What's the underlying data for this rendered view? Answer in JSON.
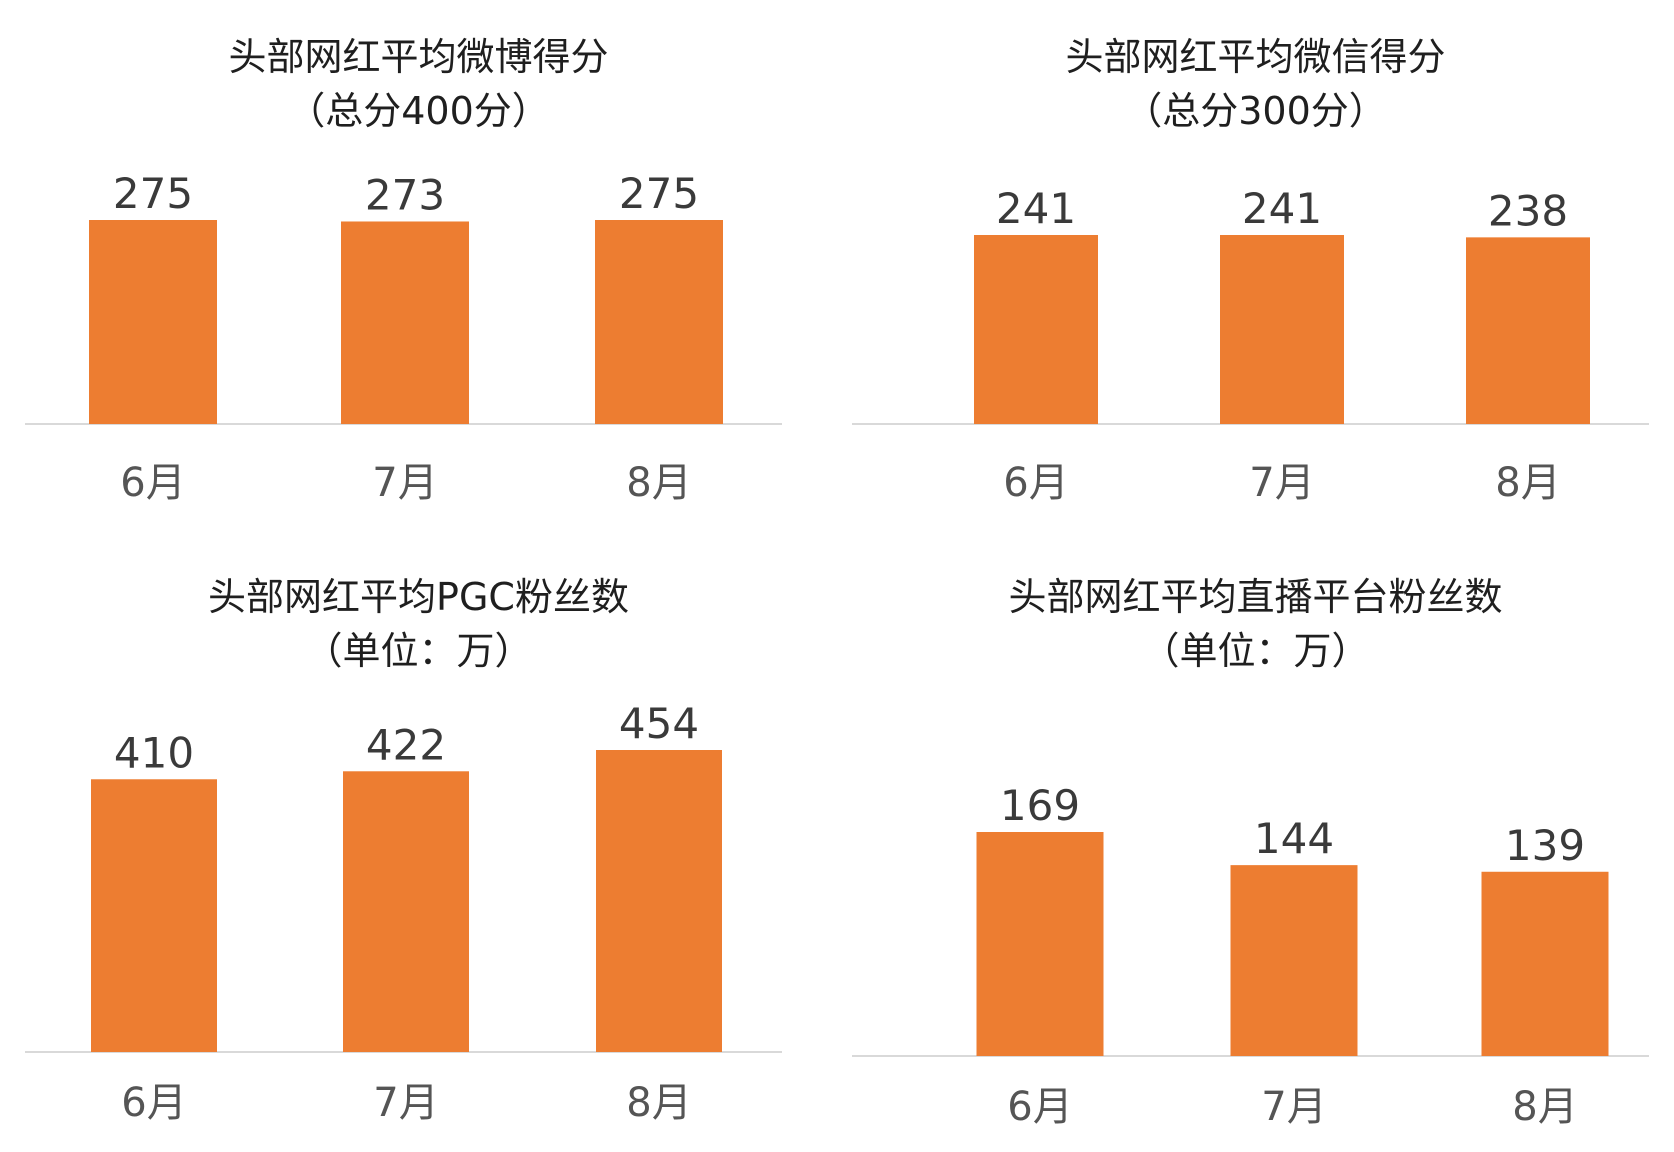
{
  "colors": {
    "bar": "#ED7D31",
    "axis": "#D9D9D9",
    "title_text": "#1F1F1F",
    "label_text": "#3A3A3A",
    "tick_text": "#555555"
  },
  "chart_data": [
    {
      "type": "bar",
      "title": "头部网红平均微博得分",
      "subtitle": "（总分400分）",
      "categories": [
        "6月",
        "7月",
        "8月"
      ],
      "values": [
        275,
        273,
        275
      ],
      "data_labels": [
        "275",
        "273",
        "275"
      ],
      "xlabel": "",
      "ylabel": "",
      "ylim": [
        0,
        275
      ],
      "grid": false,
      "legend": "none"
    },
    {
      "type": "bar",
      "title": "头部网红平均微信得分",
      "subtitle": "（总分300分）",
      "categories": [
        "6月",
        "7月",
        "8月"
      ],
      "values": [
        241,
        241,
        238
      ],
      "data_labels": [
        "241",
        "241",
        "238"
      ],
      "xlabel": "",
      "ylabel": "",
      "ylim": [
        0,
        241
      ],
      "grid": false,
      "legend": "none"
    },
    {
      "type": "bar",
      "title": "头部网红平均PGC粉丝数",
      "subtitle": "（单位：万）",
      "categories": [
        "6月",
        "7月",
        "8月"
      ],
      "values": [
        410,
        422,
        454
      ],
      "data_labels": [
        "410",
        "422",
        "454"
      ],
      "xlabel": "",
      "ylabel": "",
      "ylim": [
        0,
        454
      ],
      "grid": false,
      "legend": "none"
    },
    {
      "type": "bar",
      "title": "头部网红平均直播平台粉丝数",
      "subtitle": "（单位：万）",
      "categories": [
        "6月",
        "7月",
        "8月"
      ],
      "values": [
        169,
        144,
        139
      ],
      "data_labels": [
        "169",
        "144",
        "139"
      ],
      "xlabel": "",
      "ylabel": "",
      "ylim": [
        0,
        169
      ],
      "grid": false,
      "legend": "none"
    }
  ]
}
